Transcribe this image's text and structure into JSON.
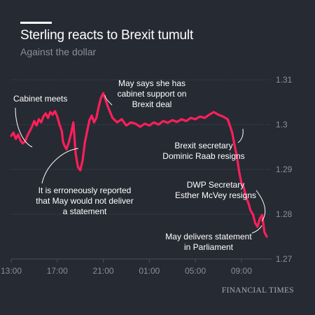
{
  "header": {
    "title": "Sterling reacts to Brexit tumult",
    "subtitle": "Against the dollar"
  },
  "source": "FINANCIAL TIMES",
  "colors": {
    "background": "#262a33",
    "line": "#ff1f5a",
    "grid": "#4a4f5a",
    "muted": "#8a8f99"
  },
  "chart_data": {
    "type": "line",
    "title": "Sterling reacts to Brexit tumult",
    "subtitle": "Against the dollar",
    "xlabel": "",
    "ylabel": "",
    "ylim": [
      1.27,
      1.31
    ],
    "yticks": [
      1.27,
      1.28,
      1.29,
      1.3,
      1.31
    ],
    "ytick_labels": [
      "1.27",
      "1.28",
      "1.29",
      "1.3",
      "1.31"
    ],
    "x_unit": "hours since 13:00",
    "xlim": [
      0,
      22.5
    ],
    "xticks": [
      0,
      4,
      8,
      12,
      16,
      20
    ],
    "xtick_labels": [
      "13:00",
      "17:00",
      "21:00",
      "01:00",
      "05:00",
      "09:00"
    ],
    "grid": true,
    "series": [
      {
        "x": [
          0,
          0.2,
          0.4,
          0.6,
          0.8,
          1.0,
          1.2,
          1.4,
          1.6,
          1.8,
          2.0,
          2.2,
          2.4,
          2.6,
          2.8,
          3.0,
          3.2,
          3.4,
          3.6,
          3.8,
          4.0,
          4.2,
          4.4,
          4.5,
          4.6,
          4.8,
          5.0,
          5.2,
          5.4,
          5.6,
          5.8,
          6.0,
          6.2,
          6.4,
          6.6,
          6.8,
          7.0,
          7.2,
          7.4,
          7.6,
          7.8,
          8.0,
          8.4,
          8.8,
          9.2,
          9.6,
          10.0,
          10.4,
          10.8,
          11.2,
          11.6,
          12.0,
          12.4,
          12.8,
          13.2,
          13.6,
          14.0,
          14.4,
          14.8,
          15.2,
          15.6,
          16.0,
          16.4,
          16.8,
          17.2,
          17.6,
          18.0,
          18.4,
          18.8,
          19.0,
          19.2,
          19.4,
          19.6,
          19.8,
          20.0,
          20.2,
          20.4,
          20.6,
          20.8,
          21.0,
          21.2,
          21.4,
          21.6,
          21.8,
          22.0,
          22.2
        ],
        "y": [
          1.2975,
          1.2982,
          1.2968,
          1.2978,
          1.2965,
          1.2958,
          1.2962,
          1.2975,
          1.2985,
          1.2995,
          1.3008,
          1.2998,
          1.3012,
          1.3005,
          1.3018,
          1.3025,
          1.3015,
          1.3028,
          1.3022,
          1.303,
          1.3018,
          1.3,
          1.2985,
          1.2962,
          1.2955,
          1.2945,
          1.296,
          1.298,
          1.3005,
          1.2935,
          1.2905,
          1.2898,
          1.292,
          1.296,
          1.2985,
          1.301,
          1.302,
          1.3005,
          1.3015,
          1.304,
          1.306,
          1.307,
          1.304,
          1.3015,
          1.3005,
          1.3012,
          1.2998,
          1.3005,
          1.3002,
          1.2995,
          1.3002,
          1.2998,
          1.3005,
          1.3,
          1.3008,
          1.3004,
          1.301,
          1.3006,
          1.3012,
          1.3008,
          1.3015,
          1.3012,
          1.3018,
          1.3015,
          1.3022,
          1.3028,
          1.3022,
          1.3018,
          1.3012,
          1.2998,
          1.2982,
          1.2955,
          1.293,
          1.2895,
          1.287,
          1.286,
          1.2838,
          1.2825,
          1.2808,
          1.28,
          1.278,
          1.2772,
          1.279,
          1.2798,
          1.276,
          1.275
        ]
      }
    ],
    "annotations": [
      {
        "lines": [
          "Cabinet meets"
        ],
        "x": 1.0,
        "y": 1.296
      },
      {
        "lines": [
          "May says she has",
          "cabinet support on",
          "Brexit deal"
        ],
        "x": 7.8,
        "y": 1.306
      },
      {
        "lines": [
          "It is erroneously reported",
          "that May would not deliver",
          "a statement"
        ],
        "x": 5.5,
        "y": 1.2975
      },
      {
        "lines": [
          "Brexit secretary",
          "Dominic Raab resigns"
        ],
        "x": 19.0,
        "y": 1.2985
      },
      {
        "lines": [
          "DWP Secretary",
          "Esther McVey resigns"
        ],
        "x": 21.7,
        "y": 1.279
      },
      {
        "lines": [
          "May delivers statement",
          "in Parliament"
        ],
        "x": 22.0,
        "y": 1.2755
      }
    ]
  }
}
